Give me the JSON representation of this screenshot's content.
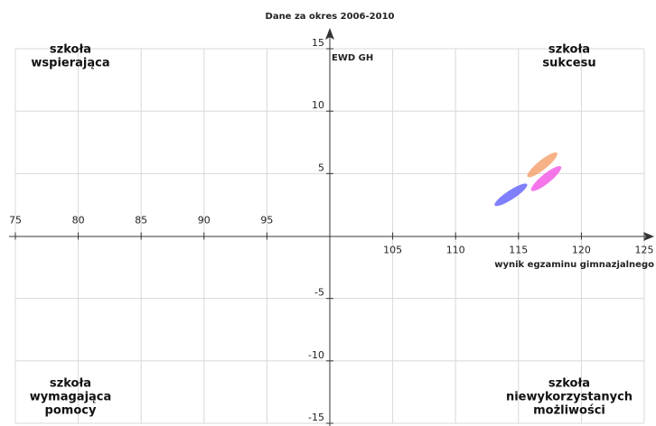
{
  "chart_data": {
    "type": "scatter",
    "title": "Dane za okres 2006-2010",
    "x_label": "wynik egzaminu gimnazjalnego",
    "y_label": "EWD GH",
    "xlim": [
      75,
      125
    ],
    "ylim": [
      -15,
      15
    ],
    "xticks": [
      75,
      80,
      85,
      90,
      95,
      105,
      110,
      115,
      120,
      125
    ],
    "yticks": [
      -15,
      -10,
      -5,
      5,
      10,
      15
    ],
    "grid": true,
    "quadrant_labels": [
      {
        "position": "top-left",
        "lines": [
          "szkoła",
          "wspierająca"
        ]
      },
      {
        "position": "top-right",
        "lines": [
          "szkoła",
          "sukcesu"
        ]
      },
      {
        "position": "bottom-left",
        "lines": [
          "szkoła",
          "wymagająca",
          "pomocy"
        ]
      },
      {
        "position": "bottom-right",
        "lines": [
          "szkoła",
          "niewykorzystanych",
          "możliwości"
        ]
      }
    ],
    "series": [
      {
        "color": "#6a6aff",
        "x": [
          114.4
        ],
        "y": [
          3.3
        ],
        "x_err": [
          1.3
        ],
        "y_err": [
          0.9
        ]
      },
      {
        "color": "#f6a372",
        "x": [
          116.9
        ],
        "y": [
          5.7
        ],
        "x_err": [
          1.2
        ],
        "y_err": [
          1.0
        ]
      },
      {
        "color": "#f25ee6",
        "x": [
          117.2
        ],
        "y": [
          4.6
        ],
        "x_err": [
          1.2
        ],
        "y_err": [
          1.0
        ]
      }
    ]
  }
}
